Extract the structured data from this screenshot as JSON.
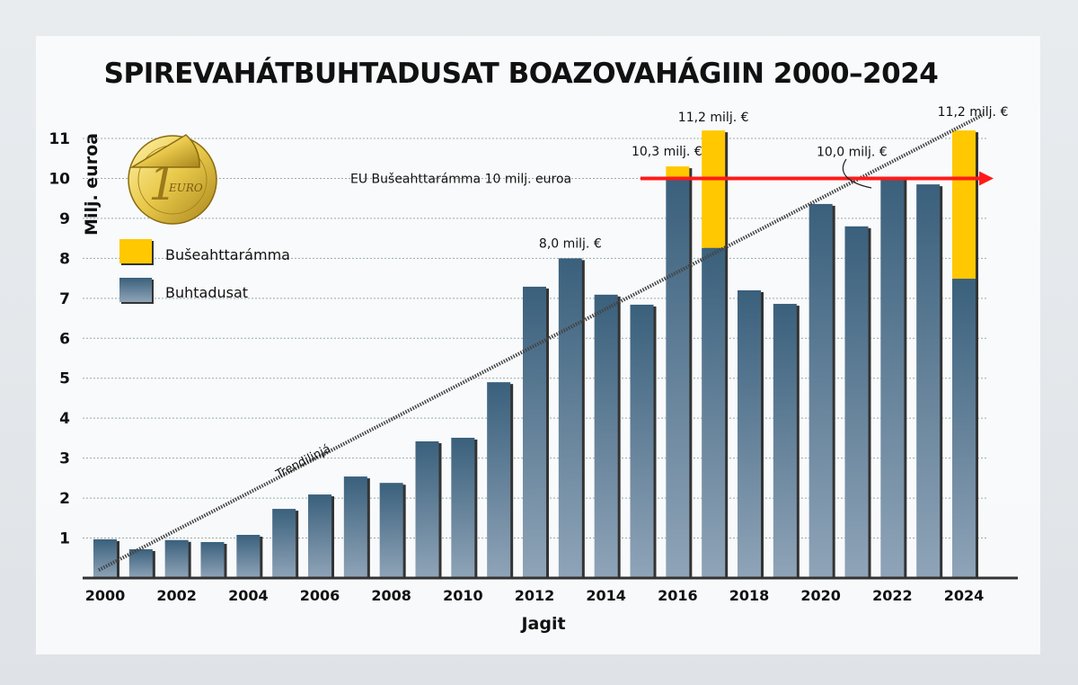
{
  "chart_data": {
    "type": "bar",
    "stacked": true,
    "title": "SPIREVAHÁTBUHTADUSAT BOAZOVAHÁGIIN 2000–2024",
    "xlabel": "Jagit",
    "ylabel": "Milj. euroa",
    "ylim": [
      0,
      11
    ],
    "yticks": [
      "1",
      "2",
      "3",
      "4",
      "5",
      "6",
      "7",
      "8",
      "9",
      "10",
      "11"
    ],
    "grid": true,
    "legend_position": "top-left",
    "categories": [
      "2000",
      "2001",
      "2002",
      "2003",
      "2004",
      "2005",
      "2006",
      "2007",
      "2008",
      "2009",
      "2010",
      "2011",
      "2012",
      "2013",
      "2014",
      "2015",
      "2016",
      "2017",
      "2018",
      "2019",
      "2020",
      "2021",
      "2022",
      "2023",
      "2024"
    ],
    "xtick_labels": [
      "2000",
      "2002",
      "2004",
      "2006",
      "2008",
      "2010",
      "2012",
      "2014",
      "2016",
      "2018",
      "2020",
      "2022",
      "2024"
    ],
    "series": [
      {
        "name": "Buhtadusat",
        "color": "#3d6480",
        "values": [
          0.97,
          0.72,
          0.95,
          0.9,
          1.08,
          1.73,
          2.09,
          2.54,
          2.38,
          3.42,
          3.51,
          4.9,
          7.29,
          8.0,
          7.09,
          6.84,
          10.0,
          8.26,
          7.2,
          6.86,
          9.36,
          8.8,
          10.0,
          9.85,
          7.49
        ]
      },
      {
        "name": "Bušeahttarámma",
        "color": "#ffc800",
        "values": [
          0,
          0,
          0,
          0,
          0,
          0,
          0,
          0,
          0,
          0,
          0,
          0,
          0,
          0,
          0,
          0,
          0.3,
          2.94,
          0,
          0,
          0,
          0,
          0,
          0,
          3.71
        ]
      }
    ],
    "reference_line": {
      "value": 10,
      "label": "EU Bušeahttarámma 10 milj. euroa",
      "color": "#ff1a1a"
    },
    "trendline": {
      "label": "Trendilinjá",
      "from": [
        "2000",
        0.2
      ],
      "to": [
        "2024",
        11.6
      ]
    },
    "annotations": [
      {
        "category": "2013",
        "text": "8,0 milj. €"
      },
      {
        "category": "2016",
        "text": "10,3 milj. €"
      },
      {
        "category": "2017",
        "text": "11,2 milj. €"
      },
      {
        "category": "2022",
        "text": "10,0 milj. €"
      },
      {
        "category": "2024",
        "text": "11,2 milj. €"
      }
    ]
  }
}
